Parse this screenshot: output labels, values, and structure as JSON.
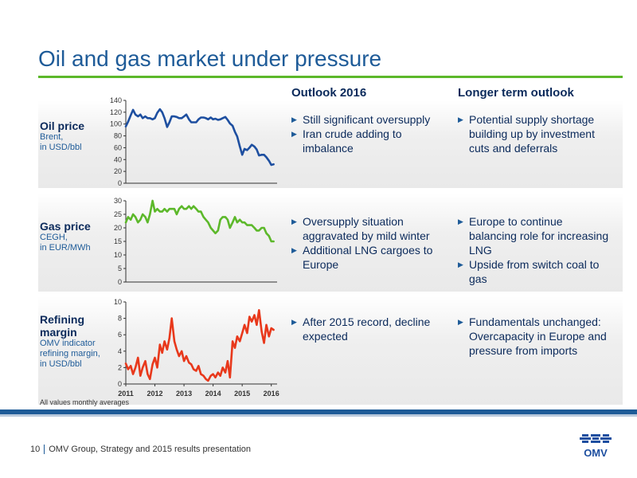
{
  "title": "Oil and gas market under pressure",
  "columns": {
    "outlook": "Outlook 2016",
    "longer": "Longer term outlook"
  },
  "rows": [
    {
      "id": "oil",
      "label_lines": [
        "Oil price"
      ],
      "sub_lines": [
        "Brent,",
        "in USD/bbl"
      ],
      "outlook": [
        "Still significant oversupply",
        "Iran crude adding to imbalance"
      ],
      "longer": [
        "Potential supply shortage building up by investment cuts and deferrals"
      ]
    },
    {
      "id": "gas",
      "label_lines": [
        "Gas price"
      ],
      "sub_lines": [
        "CEGH,",
        "in EUR/MWh"
      ],
      "outlook": [
        "Oversupply situation aggravated by mild winter",
        "Additional LNG cargoes to Europe"
      ],
      "longer": [
        "Europe to continue balancing role for increasing LNG",
        "Upside from switch coal to gas"
      ]
    },
    {
      "id": "refining",
      "label_lines": [
        "Refining",
        "margin"
      ],
      "sub_lines": [
        "OMV indicator",
        "refining margin,",
        "in USD/bbl"
      ],
      "outlook": [
        "After 2015 record, decline expected"
      ],
      "longer": [
        "Fundamentals unchanged: Overcapacity in Europe and pressure from imports"
      ]
    }
  ],
  "chart_data": [
    {
      "type": "line",
      "color": "#1e4fa0",
      "ylim": [
        0,
        140
      ],
      "yticks": [
        0,
        20,
        40,
        60,
        80,
        100,
        120,
        140
      ],
      "xlim": [
        2011,
        2016.2
      ],
      "x_tick_labels": [],
      "x": [
        2011.0,
        2011.08,
        2011.17,
        2011.25,
        2011.33,
        2011.42,
        2011.5,
        2011.58,
        2011.67,
        2011.75,
        2011.83,
        2011.92,
        2012.0,
        2012.08,
        2012.17,
        2012.25,
        2012.33,
        2012.42,
        2012.5,
        2012.58,
        2012.67,
        2012.75,
        2012.83,
        2012.92,
        2013.0,
        2013.08,
        2013.17,
        2013.25,
        2013.33,
        2013.42,
        2013.5,
        2013.58,
        2013.67,
        2013.75,
        2013.83,
        2013.92,
        2014.0,
        2014.08,
        2014.17,
        2014.25,
        2014.33,
        2014.42,
        2014.5,
        2014.58,
        2014.67,
        2014.75,
        2014.83,
        2014.92,
        2015.0,
        2015.08,
        2015.17,
        2015.25,
        2015.33,
        2015.42,
        2015.5,
        2015.58,
        2015.67,
        2015.75,
        2015.83,
        2015.92,
        2016.0,
        2016.08
      ],
      "y": [
        96,
        104,
        115,
        124,
        116,
        113,
        116,
        110,
        113,
        110,
        110,
        108,
        110,
        119,
        125,
        120,
        110,
        95,
        103,
        113,
        113,
        112,
        110,
        110,
        113,
        116,
        108,
        103,
        103,
        103,
        108,
        111,
        111,
        110,
        108,
        111,
        108,
        109,
        107,
        108,
        110,
        112,
        107,
        101,
        97,
        87,
        79,
        62,
        48,
        58,
        56,
        60,
        65,
        62,
        57,
        47,
        48,
        48,
        44,
        38,
        31,
        32
      ]
    },
    {
      "type": "line",
      "color": "#5cb82a",
      "ylim": [
        0,
        30
      ],
      "yticks": [
        0,
        5,
        10,
        15,
        20,
        25,
        30
      ],
      "xlim": [
        2011,
        2016.2
      ],
      "x_tick_labels": [],
      "x": [
        2011.0,
        2011.08,
        2011.17,
        2011.25,
        2011.33,
        2011.42,
        2011.5,
        2011.58,
        2011.67,
        2011.75,
        2011.83,
        2011.92,
        2012.0,
        2012.08,
        2012.17,
        2012.25,
        2012.33,
        2012.42,
        2012.5,
        2012.58,
        2012.67,
        2012.75,
        2012.83,
        2012.92,
        2013.0,
        2013.08,
        2013.17,
        2013.25,
        2013.33,
        2013.42,
        2013.5,
        2013.58,
        2013.67,
        2013.75,
        2013.83,
        2013.92,
        2014.0,
        2014.08,
        2014.17,
        2014.25,
        2014.33,
        2014.42,
        2014.5,
        2014.58,
        2014.67,
        2014.75,
        2014.83,
        2014.92,
        2015.0,
        2015.08,
        2015.17,
        2015.25,
        2015.33,
        2015.42,
        2015.5,
        2015.58,
        2015.67,
        2015.75,
        2015.83,
        2015.92,
        2016.0,
        2016.08
      ],
      "y": [
        22,
        24,
        23,
        25,
        24,
        22,
        23,
        25,
        24,
        22,
        25,
        30,
        26,
        27,
        26,
        26,
        27,
        26,
        27,
        27,
        27,
        25,
        27,
        28,
        27,
        27,
        28,
        27,
        28,
        27,
        26,
        26,
        24,
        23,
        22,
        20,
        19,
        18,
        19,
        23,
        24,
        24,
        23,
        20,
        22,
        24,
        22,
        23,
        22,
        22,
        21,
        21,
        21,
        20,
        19,
        19,
        20,
        20,
        18,
        17,
        15,
        15
      ]
    },
    {
      "type": "line",
      "color": "#e8381b",
      "ylim": [
        0,
        10
      ],
      "yticks": [
        0,
        2,
        4,
        6,
        8,
        10
      ],
      "xlim": [
        2011,
        2016.2
      ],
      "x_tick_labels": [
        "2011",
        "2012",
        "2013",
        "2014",
        "2015",
        "2016"
      ],
      "x": [
        2011.0,
        2011.08,
        2011.17,
        2011.25,
        2011.33,
        2011.42,
        2011.5,
        2011.58,
        2011.67,
        2011.75,
        2011.83,
        2011.92,
        2012.0,
        2012.08,
        2012.17,
        2012.25,
        2012.33,
        2012.42,
        2012.5,
        2012.58,
        2012.67,
        2012.75,
        2012.83,
        2012.92,
        2013.0,
        2013.08,
        2013.17,
        2013.25,
        2013.33,
        2013.42,
        2013.5,
        2013.58,
        2013.67,
        2013.75,
        2013.83,
        2013.92,
        2014.0,
        2014.08,
        2014.17,
        2014.25,
        2014.33,
        2014.42,
        2014.5,
        2014.58,
        2014.67,
        2014.75,
        2014.83,
        2014.92,
        2015.0,
        2015.08,
        2015.17,
        2015.25,
        2015.33,
        2015.42,
        2015.5,
        2015.58,
        2015.67,
        2015.75,
        2015.83,
        2015.92,
        2016.0,
        2016.08
      ],
      "y": [
        2.5,
        1.8,
        2.2,
        1.2,
        2.0,
        3.2,
        1.0,
        2.0,
        2.8,
        1.2,
        0.6,
        2.4,
        3.2,
        2.0,
        4.8,
        3.8,
        5.2,
        4.2,
        5.6,
        8.0,
        5.2,
        4.2,
        3.4,
        4.0,
        2.8,
        3.4,
        2.6,
        2.4,
        1.8,
        1.6,
        2.2,
        1.2,
        1.0,
        0.6,
        0.4,
        1.0,
        1.2,
        0.8,
        1.4,
        1.0,
        2.0,
        1.4,
        2.8,
        0.8,
        5.2,
        4.4,
        5.8,
        5.2,
        6.2,
        7.2,
        6.2,
        8.2,
        7.6,
        8.4,
        7.2,
        9.0,
        6.4,
        5.0,
        7.2,
        5.8,
        6.8,
        6.6
      ]
    }
  ],
  "footnote": "All values monthly averages",
  "footer": {
    "page": "10",
    "text": "OMV Group, Strategy and 2015 results presentation"
  },
  "logo": {
    "text": "OMV",
    "color": "#1e4fa0"
  }
}
